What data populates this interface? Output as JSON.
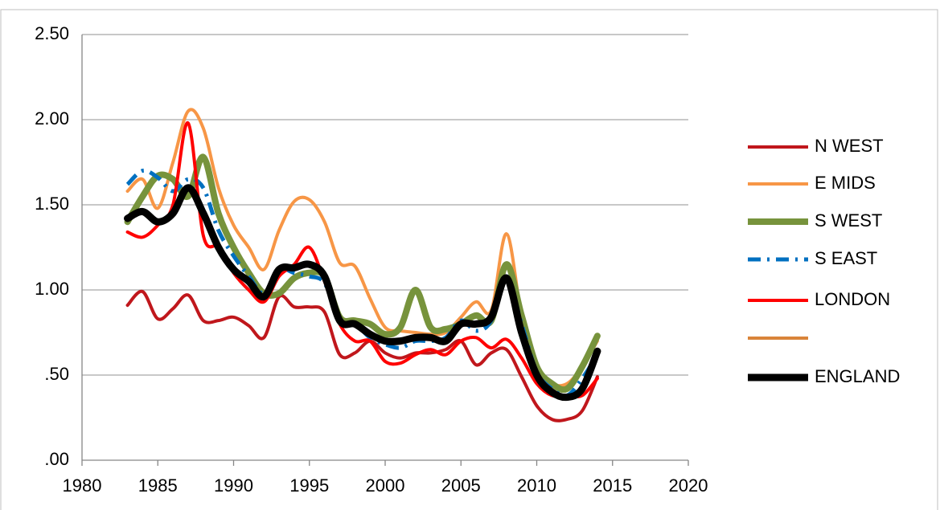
{
  "chart_data": {
    "type": "line",
    "x": [
      1983,
      1984,
      1985,
      1986,
      1987,
      1988,
      1989,
      1990,
      1991,
      1992,
      1993,
      1994,
      1995,
      1996,
      1997,
      1998,
      1999,
      2000,
      2001,
      2002,
      2003,
      2004,
      2005,
      2006,
      2007,
      2008,
      2009,
      2010,
      2011,
      2012,
      2013,
      2014
    ],
    "series": [
      {
        "name": "N WEST",
        "color": "#c0171c",
        "values": [
          0.91,
          0.99,
          0.83,
          0.89,
          0.97,
          0.82,
          0.82,
          0.84,
          0.79,
          0.72,
          0.96,
          0.9,
          0.9,
          0.87,
          0.62,
          0.63,
          0.7,
          0.63,
          0.6,
          0.63,
          0.63,
          0.65,
          0.7,
          0.56,
          0.63,
          0.65,
          0.49,
          0.32,
          0.24,
          0.24,
          0.29,
          0.49
        ]
      },
      {
        "name": "E MIDS",
        "color": "#f79646",
        "values": [
          1.58,
          1.65,
          1.48,
          1.75,
          2.05,
          1.95,
          1.6,
          1.38,
          1.25,
          1.12,
          1.35,
          1.52,
          1.53,
          1.4,
          1.16,
          1.14,
          0.95,
          0.78,
          0.76,
          0.75,
          0.74,
          0.75,
          0.84,
          0.93,
          0.88,
          1.33,
          0.85,
          0.55,
          0.45,
          0.45,
          0.55,
          0.7
        ]
      },
      {
        "name": "S WEST",
        "color": "#77933c",
        "values": [
          1.4,
          1.55,
          1.67,
          1.65,
          1.55,
          1.78,
          1.45,
          1.25,
          1.1,
          0.98,
          0.98,
          1.07,
          1.1,
          1.08,
          0.84,
          0.82,
          0.8,
          0.74,
          0.78,
          1.0,
          0.78,
          0.77,
          0.8,
          0.85,
          0.82,
          1.15,
          0.85,
          0.55,
          0.45,
          0.42,
          0.55,
          0.73
        ]
      },
      {
        "name": "S EAST",
        "color": "#0070c0",
        "values": [
          1.62,
          1.7,
          1.66,
          1.58,
          1.65,
          1.6,
          1.35,
          1.2,
          1.08,
          0.98,
          1.12,
          1.1,
          1.08,
          1.04,
          0.82,
          0.8,
          0.72,
          0.68,
          0.66,
          0.7,
          0.7,
          0.72,
          0.82,
          0.76,
          0.82,
          1.08,
          0.8,
          0.52,
          0.42,
          0.38,
          0.48,
          0.62
        ]
      },
      {
        "name": "LONDON",
        "color": "#ff0000",
        "values": [
          1.34,
          1.31,
          1.38,
          1.5,
          1.98,
          1.32,
          1.25,
          1.1,
          1.0,
          0.93,
          1.08,
          1.15,
          1.25,
          1.05,
          0.8,
          0.7,
          0.7,
          0.58,
          0.57,
          0.62,
          0.65,
          0.62,
          0.7,
          0.72,
          0.66,
          0.71,
          0.6,
          0.45,
          0.38,
          0.38,
          0.38,
          0.48
        ]
      },
      {
        "name": "ENGLAND",
        "color": "#000000",
        "values": [
          1.42,
          1.46,
          1.4,
          1.45,
          1.6,
          1.45,
          1.25,
          1.12,
          1.05,
          0.96,
          1.12,
          1.13,
          1.15,
          1.08,
          0.82,
          0.8,
          0.74,
          0.7,
          0.7,
          0.72,
          0.72,
          0.7,
          0.8,
          0.8,
          0.84,
          1.07,
          0.75,
          0.5,
          0.4,
          0.37,
          0.42,
          0.64
        ]
      }
    ],
    "xlim": [
      1980,
      2020
    ],
    "xticks": [
      1980,
      1985,
      1990,
      1995,
      2000,
      2005,
      2010,
      2015,
      2020
    ],
    "ylim": [
      0,
      2.5
    ],
    "yticks": [
      {
        "value": 0,
        "label": ".00"
      },
      {
        "value": 0.5,
        "label": ".50"
      },
      {
        "value": 1,
        "label": "1.00"
      },
      {
        "value": 1.5,
        "label": "1.50"
      },
      {
        "value": 2,
        "label": "2.00"
      },
      {
        "value": 2.5,
        "label": "2.50"
      }
    ],
    "grid": true
  }
}
